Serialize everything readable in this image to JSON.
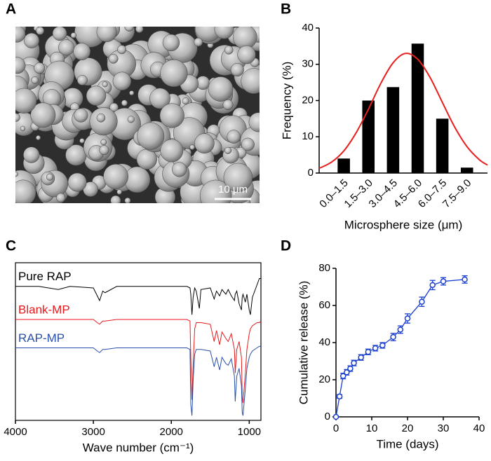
{
  "image": {
    "panel_label": "A",
    "scale_bar": "10 μm"
  },
  "chart_data": [
    {
      "type": "histogram",
      "panel_label": "B",
      "bins": [
        0,
        1.5,
        3,
        4.5,
        6,
        7.5,
        9
      ],
      "categories": [
        "0.0–1.5",
        "1.5–3.0",
        "3.0–4.5",
        "4.5–6.0",
        "6.0–7.5",
        "7.5–9.0"
      ],
      "values": [
        4,
        20,
        23.7,
        35.7,
        15,
        1.5
      ],
      "color": "#000000",
      "fit": {
        "color": "#e8201f",
        "x": [
          -0.75,
          0,
          0.75,
          1.5,
          2.25,
          3,
          3.75,
          4.5,
          5.25,
          6,
          6.75,
          7.5,
          8.25,
          9,
          9.5
        ],
        "values": [
          1.3,
          3,
          6.1,
          11.1,
          17.6,
          24.7,
          30.4,
          33,
          31.4,
          26.4,
          19.5,
          12.7,
          7.3,
          3.7,
          2.2
        ]
      },
      "xlim": [
        -0.75,
        9.5
      ],
      "ylim": [
        0,
        40
      ],
      "yticks": [
        0,
        10,
        20,
        30,
        40
      ],
      "xlabel": "Microsphere size (μm)",
      "ylabel": "Frequency (%)"
    },
    {
      "type": "line",
      "panel_label": "C",
      "x": [
        4000,
        3700,
        3450,
        3300,
        3000,
        2950,
        2920,
        2880,
        2850,
        2700,
        2400,
        2000,
        1800,
        1760,
        1750,
        1735,
        1720,
        1700,
        1680,
        1640,
        1620,
        1500,
        1450,
        1420,
        1380,
        1350,
        1300,
        1270,
        1230,
        1190,
        1180,
        1160,
        1130,
        1100,
        1090,
        1080,
        1050,
        1030,
        1000,
        985,
        960,
        900,
        870,
        850
      ],
      "series": [
        {
          "name": "Pure RAP",
          "color": "#000000",
          "values": [
            85,
            85,
            83,
            85,
            84,
            79,
            76,
            82,
            81,
            85,
            85,
            85,
            85,
            84,
            80,
            67,
            78,
            84,
            82,
            71,
            83,
            84,
            77,
            82,
            79,
            83,
            80,
            83,
            79,
            76,
            80,
            82,
            74,
            70,
            78,
            80,
            75,
            80,
            70,
            67,
            78,
            86,
            90,
            90
          ]
        },
        {
          "name": "Blank-MP",
          "color": "#e41a1c",
          "values": [
            64,
            64,
            64,
            64,
            64,
            62,
            61,
            63,
            63,
            64,
            64,
            64,
            64,
            63,
            40,
            13,
            35,
            58,
            62,
            62,
            62,
            61,
            50,
            57,
            48,
            56,
            52,
            50,
            55,
            45,
            30,
            45,
            50,
            40,
            15,
            11,
            30,
            45,
            55,
            58,
            60,
            62,
            62,
            63
          ]
        },
        {
          "name": "RAP-MP",
          "color": "#2a4fa8",
          "values": [
            46,
            46,
            46,
            46,
            46,
            44,
            43,
            45,
            45,
            46,
            46,
            46,
            46,
            45,
            10,
            3,
            25,
            42,
            45,
            45,
            45,
            44,
            34,
            40,
            32,
            40,
            36,
            35,
            39,
            28,
            12,
            28,
            33,
            22,
            5,
            3,
            20,
            33,
            40,
            42,
            44,
            46,
            47,
            47
          ]
        }
      ],
      "xlim": [
        4000,
        850
      ],
      "xticks": [
        4000,
        3000,
        2000,
        1000
      ],
      "ylim": [
        0,
        100
      ],
      "frame": true,
      "xlabel": "Wave number (cm⁻¹)"
    },
    {
      "type": "line",
      "panel_label": "D",
      "x": [
        0,
        1,
        2,
        3,
        4,
        5,
        7,
        9,
        11,
        13,
        16,
        18,
        20,
        24,
        27,
        30,
        36
      ],
      "series": [
        {
          "color": "#1a3fd0",
          "marker": "open-circle",
          "values": [
            0,
            11,
            22,
            24,
            26,
            29,
            32,
            35,
            37,
            38.5,
            43,
            47,
            53,
            62,
            71,
            73,
            74
          ],
          "errors": [
            0.5,
            1,
            1.5,
            1.5,
            1.5,
            1.5,
            1.5,
            1.5,
            1.5,
            1.5,
            2,
            2,
            2.5,
            2.5,
            2.5,
            2,
            2
          ]
        }
      ],
      "xlim": [
        0,
        40
      ],
      "xticks": [
        0,
        10,
        20,
        30,
        40
      ],
      "ylim": [
        0,
        80
      ],
      "yticks": [
        0,
        20,
        40,
        60,
        80
      ],
      "xlabel": "Time (days)",
      "ylabel": "Cumulative release (%)"
    }
  ]
}
